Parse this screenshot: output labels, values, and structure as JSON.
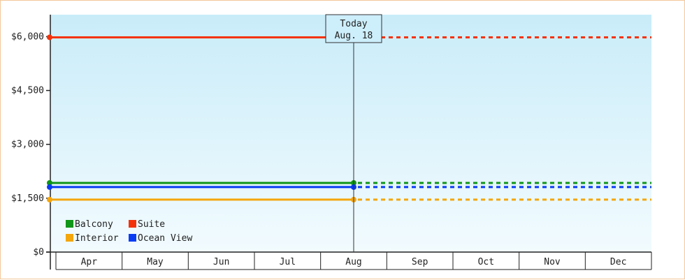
{
  "chart_data": {
    "type": "line",
    "title": "",
    "xlabel": "",
    "ylabel": "",
    "categories": [
      "Apr",
      "May",
      "Jun",
      "Jul",
      "Aug",
      "Sep",
      "Oct",
      "Nov",
      "Dec"
    ],
    "y_ticks": [
      0,
      1500,
      3000,
      4500,
      6000
    ],
    "y_tick_labels": [
      "$0",
      "$1,500",
      "$3,000",
      "$4,500",
      "$6,000"
    ],
    "ylim": [
      0,
      7000
    ],
    "grid": false,
    "legend_position": "bottom-left",
    "today": {
      "line1": "Today",
      "line2": "Aug. 18",
      "x": "Aug"
    },
    "series": [
      {
        "name": "Balcony",
        "color": "#109618",
        "values": [
          1925,
          1925
        ],
        "x": [
          "Apr",
          "Aug"
        ],
        "projected_to": "Dec"
      },
      {
        "name": "Suite",
        "color": "#f4320a",
        "values": [
          5980,
          5980
        ],
        "x": [
          "Apr",
          "Aug"
        ],
        "projected_to": "Dec"
      },
      {
        "name": "Interior",
        "color": "#f4a60d",
        "values": [
          1460,
          1460
        ],
        "x": [
          "Apr",
          "Aug"
        ],
        "projected_to": "Dec"
      },
      {
        "name": "Ocean View",
        "color": "#0a3cf4",
        "values": [
          1810,
          1810
        ],
        "x": [
          "Apr",
          "Aug"
        ],
        "projected_to": "Dec"
      }
    ],
    "colors": {
      "plot_bg_top": "#c9ecf9",
      "plot_bg_bottom": "#f2fbfe",
      "frame_border": "#f3c89a"
    }
  }
}
